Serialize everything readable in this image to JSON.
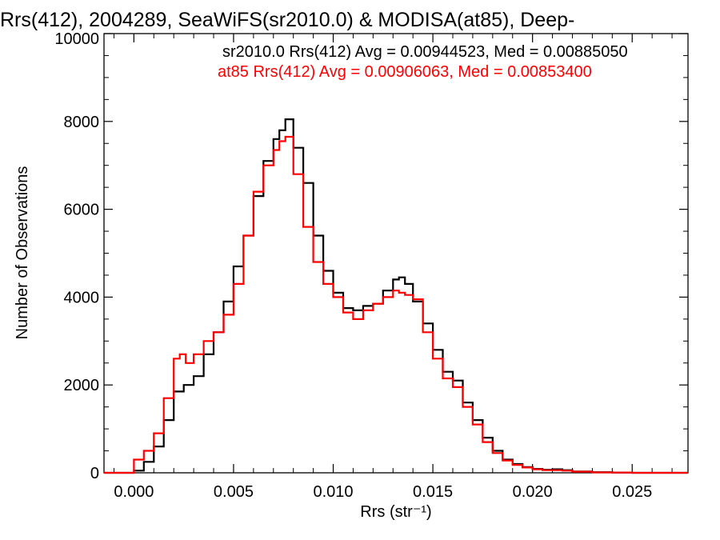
{
  "chart_data": {
    "type": "line",
    "title": "Rrs(412), 2004289, SeaWiFS(sr2010.0) & MODISA(at85), Deep-",
    "xlabel": "Rrs (str⁻¹)",
    "ylabel": "Number of Observations",
    "xlim": [
      -0.0015,
      0.0278
    ],
    "ylim": [
      0,
      10000
    ],
    "x_ticks": [
      0.0,
      0.005,
      0.01,
      0.015,
      0.02,
      0.025
    ],
    "x_tick_labels": [
      "0.000",
      "0.005",
      "0.010",
      "0.015",
      "0.020",
      "0.025"
    ],
    "y_ticks": [
      0,
      2000,
      4000,
      6000,
      8000,
      10000
    ],
    "y_tick_labels": [
      "0",
      "2000",
      "4000",
      "6000",
      "8000",
      "10000"
    ],
    "grid": false,
    "legend_placement": "top-right",
    "annotations": [
      {
        "text": "sr2010.0 Rrs(412) Avg = 0.00944523, Med = 0.00885050",
        "color": "#000000"
      },
      {
        "text": "at85 Rrs(412) Avg = 0.00906063, Med = 0.00853400",
        "color": "#ff0000"
      }
    ],
    "series": [
      {
        "color": "#000000",
        "x": [
          -0.0015,
          -0.0005,
          0.0,
          0.0005,
          0.001,
          0.0015,
          0.002,
          0.0025,
          0.003,
          0.0035,
          0.004,
          0.0045,
          0.005,
          0.0055,
          0.006,
          0.0065,
          0.007,
          0.0073,
          0.0076,
          0.008,
          0.0085,
          0.009,
          0.0095,
          0.01,
          0.0105,
          0.011,
          0.0115,
          0.012,
          0.0125,
          0.013,
          0.0133,
          0.0136,
          0.014,
          0.0145,
          0.015,
          0.0155,
          0.016,
          0.0165,
          0.017,
          0.0175,
          0.018,
          0.0185,
          0.019,
          0.0195,
          0.02,
          0.0205,
          0.021,
          0.0215,
          0.022,
          0.023,
          0.024,
          0.025,
          0.026,
          0.027,
          0.0278
        ],
        "y": [
          0,
          0,
          50,
          250,
          600,
          1200,
          1850,
          2000,
          2200,
          2700,
          3200,
          3900,
          4700,
          5400,
          6300,
          7100,
          7600,
          7800,
          8050,
          7400,
          6600,
          5400,
          4600,
          4100,
          3750,
          3700,
          3800,
          3850,
          4150,
          4400,
          4450,
          4300,
          3900,
          3400,
          2800,
          2300,
          2100,
          1600,
          1200,
          800,
          500,
          300,
          200,
          130,
          90,
          70,
          80,
          60,
          30,
          15,
          5,
          0,
          0,
          0,
          0
        ]
      },
      {
        "color": "#ff0000",
        "x": [
          -0.0015,
          -0.0005,
          0.0,
          0.0005,
          0.001,
          0.0015,
          0.002,
          0.0023,
          0.0026,
          0.003,
          0.0035,
          0.004,
          0.0045,
          0.005,
          0.0055,
          0.006,
          0.0065,
          0.007,
          0.0073,
          0.0076,
          0.008,
          0.0085,
          0.009,
          0.0095,
          0.01,
          0.0105,
          0.011,
          0.0115,
          0.012,
          0.0125,
          0.013,
          0.0133,
          0.0136,
          0.014,
          0.0145,
          0.015,
          0.0155,
          0.016,
          0.0165,
          0.017,
          0.0175,
          0.018,
          0.0185,
          0.019,
          0.0195,
          0.02,
          0.0205,
          0.021,
          0.0215,
          0.022,
          0.023,
          0.024,
          0.025,
          0.026,
          0.027,
          0.0278
        ],
        "y": [
          0,
          0,
          300,
          500,
          900,
          1700,
          2600,
          2700,
          2500,
          2700,
          3000,
          3200,
          3600,
          4300,
          5400,
          6400,
          7000,
          7350,
          7550,
          7650,
          6800,
          5600,
          4800,
          4300,
          4000,
          3650,
          3500,
          3700,
          3850,
          4000,
          4150,
          4100,
          4050,
          3950,
          3200,
          2600,
          2150,
          1950,
          1500,
          1100,
          700,
          450,
          280,
          180,
          120,
          80,
          60,
          60,
          50,
          25,
          10,
          5,
          0,
          0,
          0,
          0
        ]
      }
    ]
  }
}
